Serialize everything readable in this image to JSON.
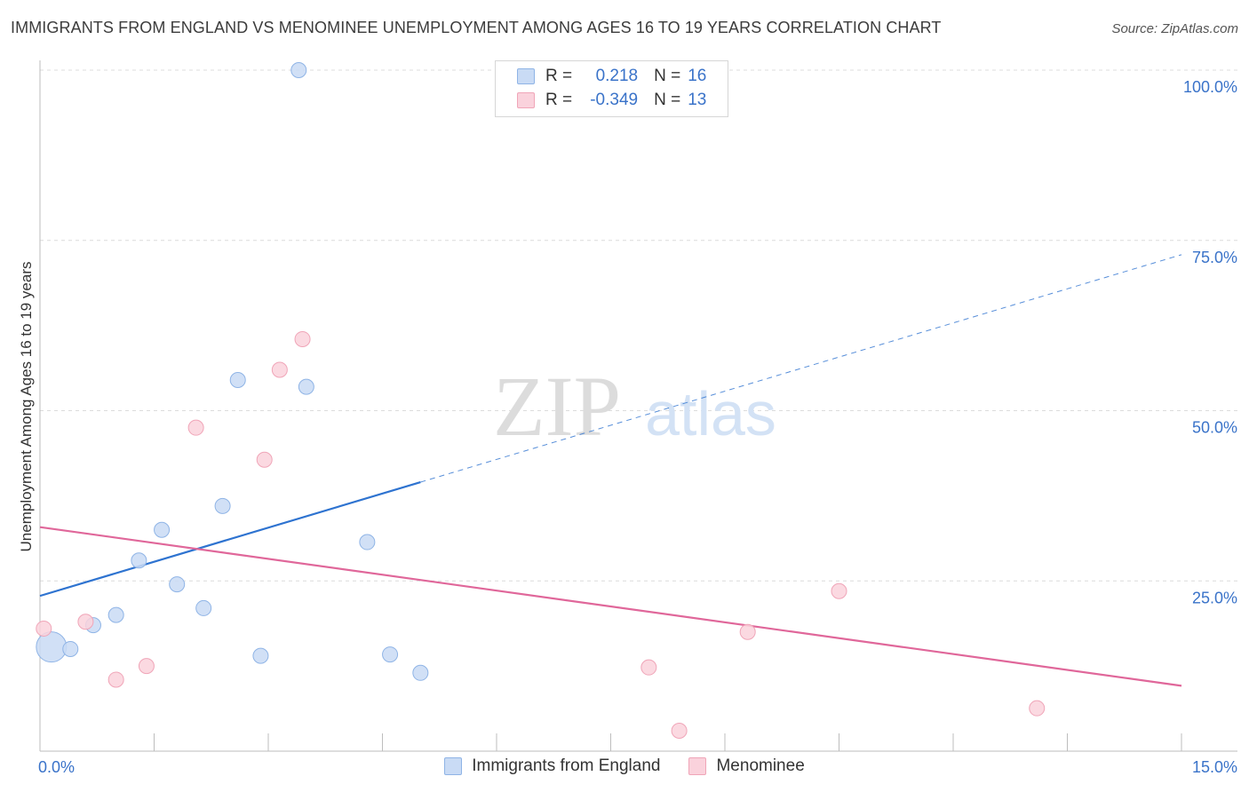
{
  "title": "IMMIGRANTS FROM ENGLAND VS MENOMINEE UNEMPLOYMENT AMONG AGES 16 TO 19 YEARS CORRELATION CHART",
  "source": "Source: ZipAtlas.com",
  "watermark": {
    "zip": "ZIP",
    "atlas": "atlas"
  },
  "legend": {
    "r_label": "R =",
    "n_label": "N =",
    "rows": [
      {
        "r": "0.218",
        "n": "16",
        "color": "#aecbf3"
      },
      {
        "r": "-0.349",
        "n": "13",
        "color": "#f8c3d0"
      }
    ]
  },
  "bottom_legend": [
    "Immigrants from England",
    "Menominee"
  ],
  "colors": {
    "blue_fill": "#c9dbf5",
    "blue_stroke": "#8fb4e6",
    "blue_line": "#2e73d0",
    "pink_fill": "#fad2dc",
    "pink_stroke": "#f0a5b8",
    "pink_line": "#e0679a",
    "tick_text": "#3a73c9",
    "grid": "#dcdcdc"
  },
  "chart_data": {
    "type": "scatter",
    "title": "IMMIGRANTS FROM ENGLAND VS MENOMINEE UNEMPLOYMENT AMONG AGES 16 TO 19 YEARS CORRELATION CHART",
    "xlabel": "",
    "ylabel": "Unemployment Among Ages 16 to 19 years",
    "xlim": [
      0,
      15
    ],
    "ylim": [
      0,
      100
    ],
    "x_tick_labels": [
      {
        "value": 0,
        "label": "0.0%"
      },
      {
        "value": 15,
        "label": "15.0%"
      }
    ],
    "y_tick_labels": [
      {
        "value": 25,
        "label": "25.0%"
      },
      {
        "value": 50,
        "label": "50.0%"
      },
      {
        "value": 75,
        "label": "75.0%"
      },
      {
        "value": 100,
        "label": "100.0%"
      }
    ],
    "grid": true,
    "legend_position": "top-center",
    "series": [
      {
        "name": "Immigrants from England",
        "r": 0.218,
        "n": 16,
        "points": [
          {
            "x": 0.15,
            "y": 15.3,
            "big": true
          },
          {
            "x": 0.4,
            "y": 15.0
          },
          {
            "x": 0.7,
            "y": 18.5
          },
          {
            "x": 1.0,
            "y": 20.0
          },
          {
            "x": 1.3,
            "y": 28.0
          },
          {
            "x": 1.6,
            "y": 32.5
          },
          {
            "x": 1.8,
            "y": 24.5
          },
          {
            "x": 2.15,
            "y": 21.0
          },
          {
            "x": 2.4,
            "y": 36.0
          },
          {
            "x": 2.6,
            "y": 54.5
          },
          {
            "x": 2.9,
            "y": 14.0
          },
          {
            "x": 3.4,
            "y": 100.0
          },
          {
            "x": 3.5,
            "y": 53.5
          },
          {
            "x": 4.3,
            "y": 30.7
          },
          {
            "x": 4.6,
            "y": 14.2
          },
          {
            "x": 5.0,
            "y": 11.5
          }
        ],
        "trend": {
          "x0": 0,
          "y0": 22.8,
          "x_solid_end": 5.0,
          "x1": 15,
          "y1": 72.9
        }
      },
      {
        "name": "Menominee",
        "r": -0.349,
        "n": 13,
        "points": [
          {
            "x": 0.05,
            "y": 18.0
          },
          {
            "x": 0.6,
            "y": 19.0
          },
          {
            "x": 1.0,
            "y": 10.5
          },
          {
            "x": 1.4,
            "y": 12.5
          },
          {
            "x": 2.05,
            "y": 47.5
          },
          {
            "x": 2.95,
            "y": 42.8
          },
          {
            "x": 3.15,
            "y": 56.0
          },
          {
            "x": 3.45,
            "y": 60.5
          },
          {
            "x": 8.0,
            "y": 12.3
          },
          {
            "x": 9.3,
            "y": 17.5
          },
          {
            "x": 10.5,
            "y": 23.5
          },
          {
            "x": 8.4,
            "y": 3.0
          },
          {
            "x": 13.1,
            "y": 6.3
          }
        ],
        "trend": {
          "x0": 0,
          "y0": 32.9,
          "x1": 15,
          "y1": 9.6
        }
      }
    ]
  }
}
